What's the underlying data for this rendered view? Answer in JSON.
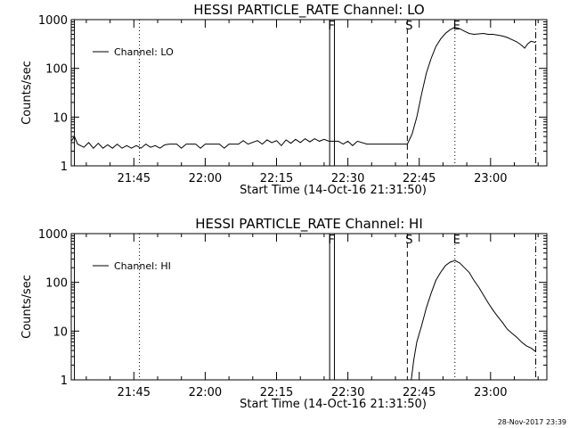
{
  "footer": {
    "timestamp": "28-Nov-2017 23:39"
  },
  "chart_data": [
    {
      "type": "line",
      "title": "HESSI PARTICLE_RATE Channel: LO",
      "xlabel": "Start Time (14-Oct-16 21:31:50)",
      "ylabel": "Counts/sec",
      "y_scale": "log",
      "ylim": [
        1,
        1000
      ],
      "xlim": [
        "21:31:50",
        "23:11:50"
      ],
      "x_ticks": [
        "21:45",
        "22:00",
        "22:15",
        "22:30",
        "22:45",
        "23:00"
      ],
      "y_ticks": [
        "1",
        "10",
        "100",
        "1000"
      ],
      "legend": {
        "position": "top-left",
        "entry": "Channel: LO"
      },
      "markers": [
        {
          "label": "",
          "time": "21:32:30",
          "style": "solid"
        },
        {
          "label": "",
          "time": "21:46:10",
          "style": "dotted"
        },
        {
          "label": "F",
          "time": "22:26:10",
          "style": "solid"
        },
        {
          "label": "",
          "time": "22:27:10",
          "style": "solid"
        },
        {
          "label": "S",
          "time": "22:42:30",
          "style": "dashed"
        },
        {
          "label": "E",
          "time": "22:52:30",
          "style": "dotted"
        },
        {
          "label": "",
          "time": "23:09:30",
          "style": "dashdot"
        }
      ],
      "series": [
        {
          "points": [
            [
              "21:31:50",
              3.2
            ],
            [
              "21:32:30",
              4.0
            ],
            [
              "21:33:10",
              2.8
            ],
            [
              "21:34:30",
              2.4
            ],
            [
              "21:35:30",
              3.0
            ],
            [
              "21:36:30",
              2.3
            ],
            [
              "21:37:30",
              2.9
            ],
            [
              "21:38:30",
              2.3
            ],
            [
              "21:39:30",
              2.7
            ],
            [
              "21:40:30",
              2.3
            ],
            [
              "21:41:30",
              2.8
            ],
            [
              "21:42:30",
              2.3
            ],
            [
              "21:43:30",
              2.6
            ],
            [
              "21:44:30",
              2.3
            ],
            [
              "21:45:30",
              2.6
            ],
            [
              "21:46:30",
              2.3
            ],
            [
              "21:47:30",
              2.8
            ],
            [
              "21:48:30",
              2.4
            ],
            [
              "21:49:30",
              2.6
            ],
            [
              "21:50:30",
              2.3
            ],
            [
              "21:51:30",
              2.7
            ],
            [
              "21:52:30",
              2.8
            ],
            [
              "21:54:00",
              2.8
            ],
            [
              "21:55:00",
              2.3
            ],
            [
              "21:56:00",
              2.8
            ],
            [
              "21:58:00",
              2.8
            ],
            [
              "21:59:00",
              2.3
            ],
            [
              "22:00:00",
              2.8
            ],
            [
              "22:03:00",
              2.8
            ],
            [
              "22:04:00",
              2.3
            ],
            [
              "22:05:00",
              2.8
            ],
            [
              "22:07:00",
              2.8
            ],
            [
              "22:08:00",
              3.3
            ],
            [
              "22:09:00",
              2.8
            ],
            [
              "22:11:00",
              3.3
            ],
            [
              "22:12:00",
              2.8
            ],
            [
              "22:13:00",
              3.4
            ],
            [
              "22:14:00",
              3.0
            ],
            [
              "22:15:00",
              3.3
            ],
            [
              "22:16:00",
              2.6
            ],
            [
              "22:17:00",
              3.4
            ],
            [
              "22:18:00",
              2.9
            ],
            [
              "22:19:00",
              3.5
            ],
            [
              "22:20:00",
              3.0
            ],
            [
              "22:21:00",
              3.6
            ],
            [
              "22:22:00",
              3.1
            ],
            [
              "22:23:00",
              3.6
            ],
            [
              "22:24:00",
              3.2
            ],
            [
              "22:25:00",
              3.5
            ],
            [
              "22:26:00",
              3.2
            ],
            [
              "22:28:00",
              3.2
            ],
            [
              "22:29:00",
              2.8
            ],
            [
              "22:30:00",
              3.2
            ],
            [
              "22:31:00",
              2.6
            ],
            [
              "22:32:00",
              3.2
            ],
            [
              "22:34:00",
              2.8
            ],
            [
              "22:36:00",
              2.8
            ],
            [
              "22:38:00",
              2.8
            ],
            [
              "22:40:00",
              2.8
            ],
            [
              "22:42:30",
              2.8
            ],
            [
              "22:43:30",
              4.5
            ],
            [
              "22:44:30",
              10
            ],
            [
              "22:45:30",
              30
            ],
            [
              "22:46:30",
              80
            ],
            [
              "22:47:30",
              160
            ],
            [
              "22:48:30",
              280
            ],
            [
              "22:49:30",
              400
            ],
            [
              "22:50:30",
              520
            ],
            [
              "22:51:30",
              620
            ],
            [
              "22:52:30",
              700
            ],
            [
              "22:53:30",
              650
            ],
            [
              "22:54:30",
              580
            ],
            [
              "22:55:30",
              520
            ],
            [
              "22:56:30",
              500
            ],
            [
              "22:57:30",
              510
            ],
            [
              "22:58:30",
              520
            ],
            [
              "22:59:30",
              500
            ],
            [
              "23:00:30",
              500
            ],
            [
              "23:01:30",
              480
            ],
            [
              "23:02:30",
              460
            ],
            [
              "23:03:30",
              430
            ],
            [
              "23:04:30",
              390
            ],
            [
              "23:05:30",
              350
            ],
            [
              "23:06:30",
              300
            ],
            [
              "23:07:10",
              260
            ],
            [
              "23:07:50",
              320
            ],
            [
              "23:08:30",
              360
            ],
            [
              "23:09:30",
              340
            ]
          ]
        }
      ]
    },
    {
      "type": "line",
      "title": "HESSI PARTICLE_RATE Channel: HI",
      "xlabel": "Start Time (14-Oct-16 21:31:50)",
      "ylabel": "Counts/sec",
      "y_scale": "log",
      "ylim": [
        1,
        1000
      ],
      "xlim": [
        "21:31:50",
        "23:11:50"
      ],
      "x_ticks": [
        "21:45",
        "22:00",
        "22:15",
        "22:30",
        "22:45",
        "23:00"
      ],
      "y_ticks": [
        "1",
        "10",
        "100",
        "1000"
      ],
      "legend": {
        "position": "top-left",
        "entry": "Channel: HI"
      },
      "markers": [
        {
          "label": "",
          "time": "21:32:30",
          "style": "solid"
        },
        {
          "label": "",
          "time": "21:46:10",
          "style": "dotted"
        },
        {
          "label": "F",
          "time": "22:26:10",
          "style": "solid"
        },
        {
          "label": "",
          "time": "22:27:10",
          "style": "solid"
        },
        {
          "label": "S",
          "time": "22:42:30",
          "style": "dashed"
        },
        {
          "label": "E",
          "time": "22:52:30",
          "style": "dotted"
        },
        {
          "label": "",
          "time": "23:09:30",
          "style": "dashdot"
        }
      ],
      "series": [
        {
          "points": [
            [
              "22:43:20",
              1.0
            ],
            [
              "22:43:50",
              2.5
            ],
            [
              "22:44:30",
              6
            ],
            [
              "22:45:30",
              13
            ],
            [
              "22:46:30",
              30
            ],
            [
              "22:47:30",
              60
            ],
            [
              "22:48:30",
              110
            ],
            [
              "22:49:30",
              160
            ],
            [
              "22:50:30",
              220
            ],
            [
              "22:51:30",
              260
            ],
            [
              "22:52:30",
              280
            ],
            [
              "22:53:30",
              250
            ],
            [
              "22:54:30",
              200
            ],
            [
              "22:55:30",
              160
            ],
            [
              "22:56:30",
              110
            ],
            [
              "22:57:30",
              80
            ],
            [
              "22:58:30",
              55
            ],
            [
              "22:59:30",
              38
            ],
            [
              "23:00:30",
              27
            ],
            [
              "23:01:30",
              20
            ],
            [
              "23:02:30",
              15
            ],
            [
              "23:03:30",
              11
            ],
            [
              "23:04:30",
              9
            ],
            [
              "23:05:30",
              7.5
            ],
            [
              "23:06:30",
              6
            ],
            [
              "23:07:30",
              5
            ],
            [
              "23:08:30",
              4.5
            ],
            [
              "23:09:30",
              3.8
            ]
          ]
        }
      ]
    }
  ]
}
